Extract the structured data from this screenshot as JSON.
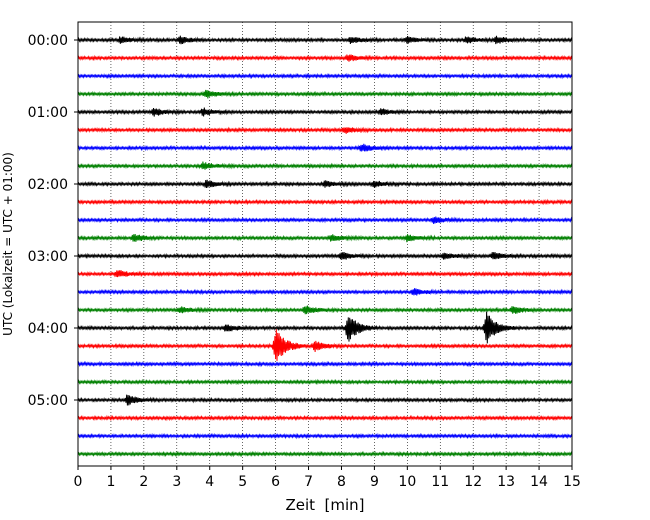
{
  "chart_data": {
    "type": "line",
    "xlabel": "Zeit  [min]",
    "ylabel": "UTC (Lokalzeit = UTC + 01:00)",
    "xlim": [
      0,
      15
    ],
    "x_ticks": [
      "0",
      "1",
      "2",
      "3",
      "4",
      "5",
      "6",
      "7",
      "8",
      "9",
      "10",
      "11",
      "12",
      "13",
      "14",
      "15"
    ],
    "y_ticks": [
      "00:00",
      "01:00",
      "02:00",
      "03:00",
      "04:00",
      "05:00"
    ],
    "grid": "vertical dotted lines at each minute",
    "row_minutes": 15,
    "trace_colors": [
      "#000000",
      "#ff0000",
      "#0000ff",
      "#008000"
    ],
    "series": [
      {
        "start": "00:00",
        "color": "#000000",
        "events": [
          {
            "t": 1.3,
            "amp": 0.3
          },
          {
            "t": 3.1,
            "amp": 0.35
          },
          {
            "t": 8.3,
            "amp": 0.35
          },
          {
            "t": 10.0,
            "amp": 0.3
          },
          {
            "t": 11.8,
            "amp": 0.3
          },
          {
            "t": 12.7,
            "amp": 0.35
          }
        ]
      },
      {
        "start": "00:15",
        "color": "#ff0000",
        "events": [
          {
            "t": 8.2,
            "amp": 0.3
          }
        ]
      },
      {
        "start": "00:30",
        "color": "#0000ff",
        "events": []
      },
      {
        "start": "00:45",
        "color": "#008000",
        "events": [
          {
            "t": 3.9,
            "amp": 0.35
          }
        ]
      },
      {
        "start": "01:00",
        "color": "#000000",
        "events": [
          {
            "t": 2.3,
            "amp": 0.35
          },
          {
            "t": 3.8,
            "amp": 0.35
          },
          {
            "t": 9.2,
            "amp": 0.3
          }
        ]
      },
      {
        "start": "01:15",
        "color": "#ff0000",
        "events": [
          {
            "t": 8.1,
            "amp": 0.3
          }
        ]
      },
      {
        "start": "01:30",
        "color": "#0000ff",
        "events": [
          {
            "t": 8.6,
            "amp": 0.4
          }
        ]
      },
      {
        "start": "01:45",
        "color": "#008000",
        "events": [
          {
            "t": 3.8,
            "amp": 0.35
          }
        ]
      },
      {
        "start": "02:00",
        "color": "#000000",
        "events": [
          {
            "t": 3.9,
            "amp": 0.35
          },
          {
            "t": 7.5,
            "amp": 0.3
          },
          {
            "t": 9.0,
            "amp": 0.3
          }
        ]
      },
      {
        "start": "02:15",
        "color": "#ff0000",
        "events": []
      },
      {
        "start": "02:30",
        "color": "#0000ff",
        "events": [
          {
            "t": 10.8,
            "amp": 0.3
          }
        ]
      },
      {
        "start": "02:45",
        "color": "#008000",
        "events": [
          {
            "t": 1.7,
            "amp": 0.35
          },
          {
            "t": 7.7,
            "amp": 0.3
          },
          {
            "t": 10.0,
            "amp": 0.3
          }
        ]
      },
      {
        "start": "03:00",
        "color": "#000000",
        "events": [
          {
            "t": 8.0,
            "amp": 0.4
          },
          {
            "t": 11.1,
            "amp": 0.3
          },
          {
            "t": 12.6,
            "amp": 0.35
          }
        ]
      },
      {
        "start": "03:15",
        "color": "#ff0000",
        "events": [
          {
            "t": 1.2,
            "amp": 0.35
          }
        ]
      },
      {
        "start": "03:30",
        "color": "#0000ff",
        "events": [
          {
            "t": 10.2,
            "amp": 0.3
          }
        ]
      },
      {
        "start": "03:45",
        "color": "#008000",
        "events": [
          {
            "t": 3.1,
            "amp": 0.3
          },
          {
            "t": 6.9,
            "amp": 0.4
          },
          {
            "t": 13.2,
            "amp": 0.35
          }
        ]
      },
      {
        "start": "04:00",
        "color": "#000000",
        "events": [
          {
            "t": 4.5,
            "amp": 0.35
          },
          {
            "t": 8.2,
            "amp": 1.4
          },
          {
            "t": 12.4,
            "amp": 1.6
          }
        ]
      },
      {
        "start": "04:15",
        "color": "#ff0000",
        "events": [
          {
            "t": 6.0,
            "amp": 1.7
          },
          {
            "t": 7.2,
            "amp": 0.5
          }
        ]
      },
      {
        "start": "04:30",
        "color": "#0000ff",
        "events": []
      },
      {
        "start": "04:45",
        "color": "#008000",
        "events": []
      },
      {
        "start": "05:00",
        "color": "#000000",
        "events": [
          {
            "t": 1.5,
            "amp": 0.5
          }
        ]
      },
      {
        "start": "05:15",
        "color": "#ff0000",
        "events": []
      },
      {
        "start": "05:30",
        "color": "#0000ff",
        "events": []
      },
      {
        "start": "05:45",
        "color": "#008000",
        "events": []
      }
    ]
  }
}
